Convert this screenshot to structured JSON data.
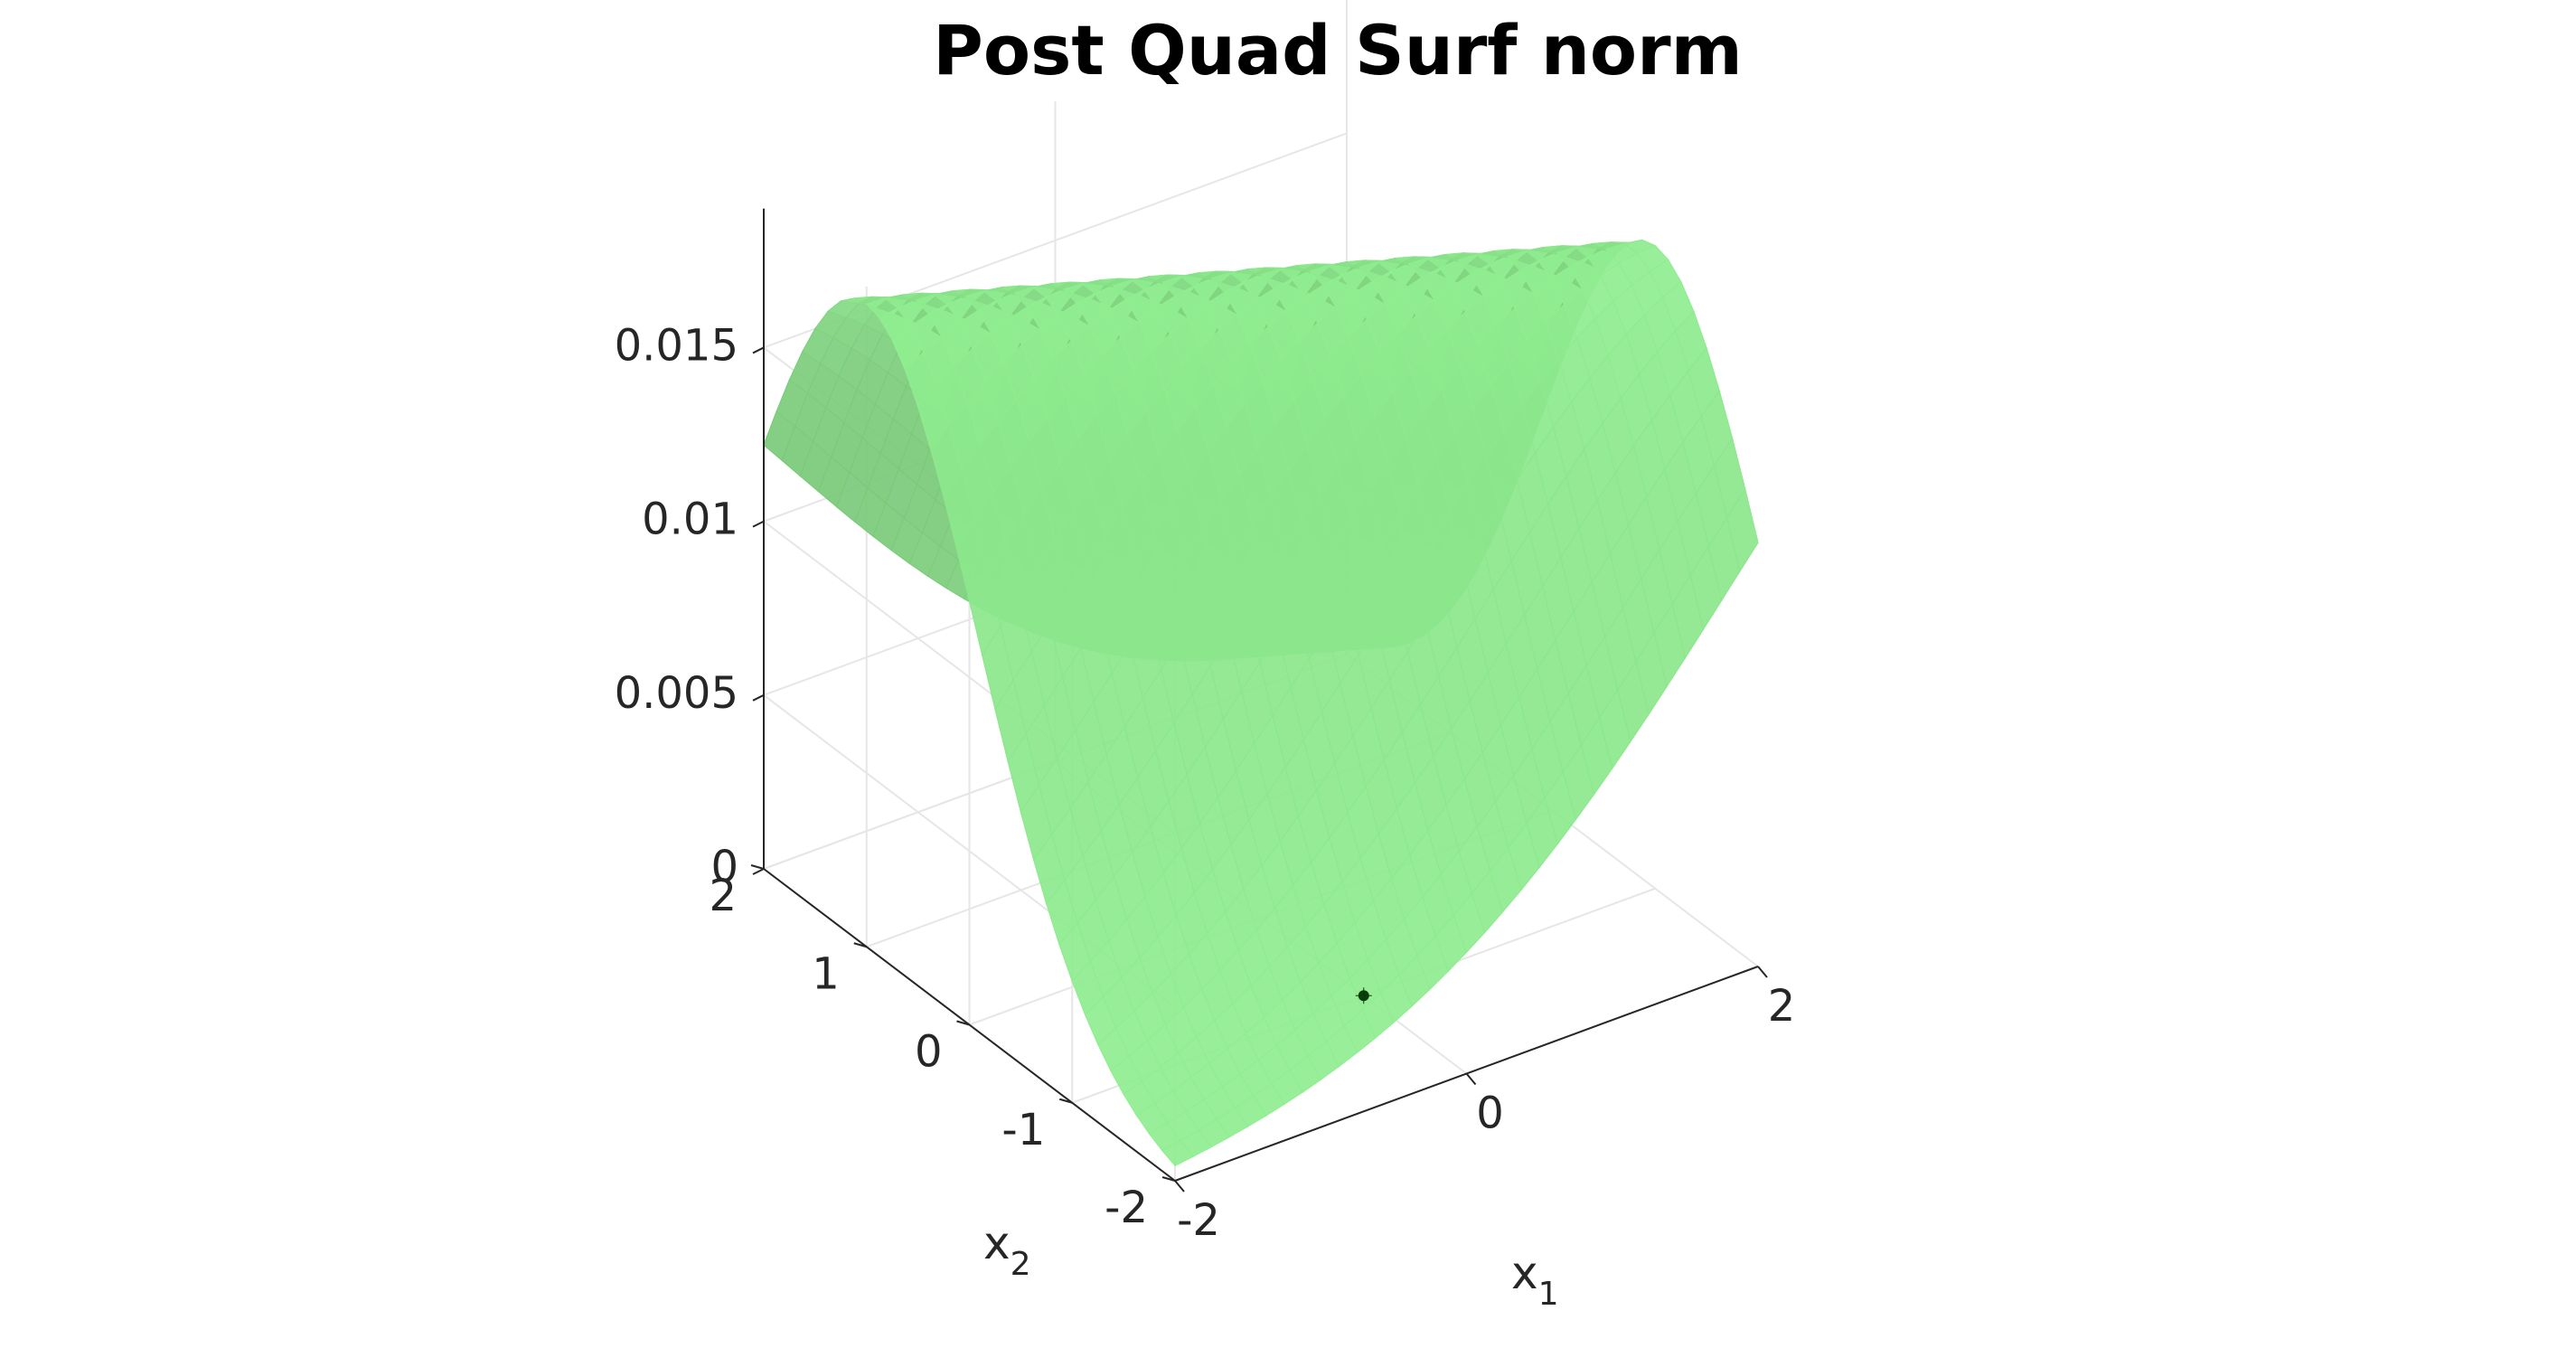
{
  "chart_data": {
    "type": "surface",
    "title": "Post Quad Surf norm",
    "xlabel": "x",
    "xlabel_sub": "1",
    "ylabel": "x",
    "ylabel_sub": "2",
    "zlabel": "",
    "xlim": [
      -2,
      2
    ],
    "ylim": [
      -2,
      2
    ],
    "zlim": [
      0,
      0.019
    ],
    "x_ticks": [
      -2,
      0,
      2
    ],
    "x_tick_labels": [
      "-2",
      "0",
      "2"
    ],
    "y_ticks": [
      -2,
      -1,
      0,
      1,
      2
    ],
    "y_tick_labels": [
      "-2",
      "-1",
      "0",
      "1",
      "2"
    ],
    "z_ticks": [
      0,
      0.005,
      0.01,
      0.015
    ],
    "z_tick_labels": [
      "0",
      "0.005",
      "0.01",
      "0.015"
    ],
    "grid": true,
    "surface": {
      "function": "z = 0.0185 * exp(-(x2 + 0.5*x1)^2 / 2.4)",
      "color": "#90ee90",
      "edge_color": "none"
    },
    "points": [
      {
        "x": 0.0,
        "y": -1.0,
        "z": 0.0,
        "color": "#0b3d0b",
        "marker": "*"
      }
    ],
    "colors": {
      "surface": "#90ee90",
      "point": "#0b3d0b",
      "axis": "#262626",
      "grid": "#e6e6e6"
    }
  }
}
